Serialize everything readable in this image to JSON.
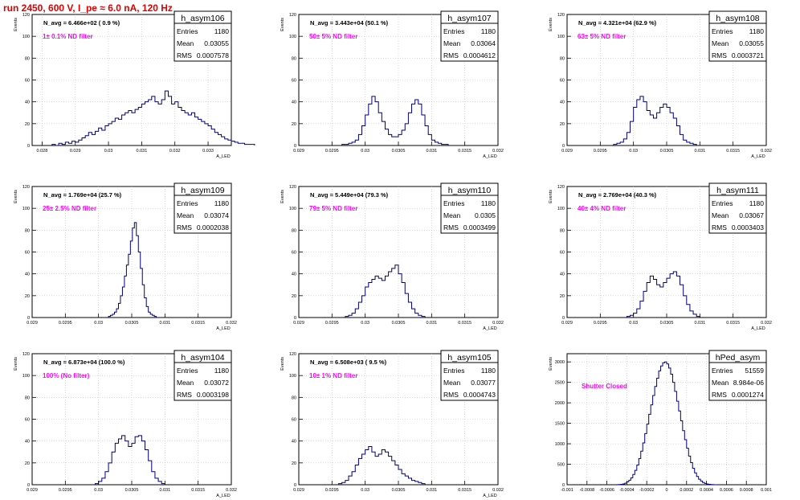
{
  "run_title": "run 2450,   600 V, I_pe ≈ 6.0 nA, 120 Hz",
  "colors": {
    "title": "#e00000",
    "hist_line": "#000080",
    "annotation": "#ff00ff",
    "axis": "#000000",
    "grid": "#c0c0c0"
  },
  "stat_labels": {
    "entries": "Entries",
    "mean": "Mean",
    "rms": "RMS"
  },
  "chart_data": [
    {
      "type": "histogram",
      "name": "h_asym106",
      "navg_text": "N_avg = 6.466e+02 ( 0.9 %)",
      "filter_text": "1± 0.1% ND filter",
      "entries": "1180",
      "mean": "0.03055",
      "rms": "0.0007578",
      "ylabel": "Events",
      "xlabel": "A_LED",
      "xlim": [
        0.0277,
        0.0337
      ],
      "ylim": [
        0,
        120
      ],
      "xticks": [
        0.028,
        0.029,
        0.03,
        0.031,
        0.032,
        0.033
      ],
      "xtick_labels": [
        "0.028",
        "0.029",
        "0.03",
        "0.031",
        "0.032",
        "0.033"
      ],
      "yticks": [
        0,
        20,
        40,
        60,
        80,
        100,
        120
      ],
      "grid": true,
      "legend_position": "top-right",
      "bins": {
        "start": 0.0283,
        "width": 0.0001,
        "counts": [
          1,
          0,
          2,
          1,
          3,
          2,
          4,
          3,
          5,
          7,
          9,
          12,
          10,
          13,
          16,
          14,
          18,
          20,
          22,
          25,
          24,
          28,
          30,
          32,
          30,
          33,
          35,
          38,
          40,
          42,
          45,
          40,
          38,
          42,
          50,
          45,
          38,
          40,
          35,
          32,
          30,
          28,
          30,
          26,
          24,
          22,
          20,
          18,
          15,
          12,
          10,
          8,
          6,
          5,
          4,
          3,
          2,
          2,
          1,
          1,
          1
        ]
      }
    },
    {
      "type": "histogram",
      "name": "h_asym107",
      "navg_text": "N_avg = 3.443e+04 (50.1 %)",
      "filter_text": "50± 5% ND filter",
      "entries": "1180",
      "mean": "0.03064",
      "rms": "0.0004612",
      "ylabel": "Events",
      "xlabel": "A_LED",
      "xlim": [
        0.029,
        0.032
      ],
      "ylim": [
        0,
        120
      ],
      "xticks": [
        0.029,
        0.0295,
        0.03,
        0.0305,
        0.031,
        0.0315,
        0.032
      ],
      "xtick_labels": [
        "0.029",
        "0.0295",
        "0.03",
        "0.0305",
        "0.031",
        "0.0315",
        "0.032"
      ],
      "yticks": [
        0,
        20,
        40,
        60,
        80,
        100,
        120
      ],
      "grid": true,
      "legend_position": "top-right",
      "bins": {
        "start": 0.02965,
        "width": 5e-05,
        "counts": [
          1,
          1,
          2,
          3,
          5,
          10,
          18,
          28,
          38,
          45,
          40,
          30,
          22,
          15,
          10,
          8,
          8,
          10,
          14,
          20,
          30,
          38,
          42,
          38,
          28,
          18,
          10,
          5,
          3,
          2,
          1,
          1
        ]
      }
    },
    {
      "type": "histogram",
      "name": "h_asym108",
      "navg_text": "N_avg = 4.321e+04 (62.9 %)",
      "filter_text": "63± 5% ND filter",
      "entries": "1180",
      "mean": "0.03055",
      "rms": "0.0003721",
      "ylabel": "Events",
      "xlabel": "A_LED",
      "xlim": [
        0.029,
        0.032
      ],
      "ylim": [
        0,
        120
      ],
      "xticks": [
        0.029,
        0.0295,
        0.03,
        0.0305,
        0.031,
        0.0315,
        0.032
      ],
      "xtick_labels": [
        "0.029",
        "0.0295",
        "0.03",
        "0.0305",
        "0.031",
        "0.0315",
        "0.032"
      ],
      "yticks": [
        0,
        20,
        40,
        60,
        80,
        100,
        120
      ],
      "grid": true,
      "legend_position": "top-right",
      "bins": {
        "start": 0.0297,
        "width": 5e-05,
        "counts": [
          1,
          2,
          3,
          6,
          12,
          22,
          35,
          42,
          45,
          40,
          32,
          28,
          25,
          30,
          35,
          38,
          35,
          30,
          25,
          18,
          10,
          5,
          3,
          2,
          1
        ]
      }
    },
    {
      "type": "histogram",
      "name": "h_asym109",
      "navg_text": "N_avg = 1.769e+04 (25.7 %)",
      "filter_text": "25± 2.5% ND filter",
      "entries": "1180",
      "mean": "0.03074",
      "rms": "0.0002038",
      "ylabel": "Events",
      "xlabel": "A_LED",
      "xlim": [
        0.029,
        0.032
      ],
      "ylim": [
        0,
        120
      ],
      "xticks": [
        0.029,
        0.0295,
        0.03,
        0.0305,
        0.031,
        0.0315,
        0.032
      ],
      "xtick_labels": [
        "0.029",
        "0.0295",
        "0.03",
        "0.0305",
        "0.031",
        "0.0315",
        "0.032"
      ],
      "yticks": [
        0,
        20,
        40,
        60,
        80,
        100,
        120
      ],
      "grid": true,
      "legend_position": "top-right",
      "bins": {
        "start": 0.03015,
        "width": 3e-05,
        "counts": [
          1,
          2,
          3,
          5,
          8,
          13,
          20,
          28,
          38,
          48,
          58,
          70,
          82,
          87,
          75,
          60,
          45,
          30,
          18,
          10,
          5,
          3,
          2,
          1
        ]
      }
    },
    {
      "type": "histogram",
      "name": "h_asym110",
      "navg_text": "N_avg = 5.449e+04 (79.3 %)",
      "filter_text": "79± 5% ND filter",
      "entries": "1180",
      "mean": "0.0305",
      "rms": "0.0003499",
      "ylabel": "Events",
      "xlabel": "A_LED",
      "xlim": [
        0.029,
        0.032
      ],
      "ylim": [
        0,
        120
      ],
      "xticks": [
        0.029,
        0.0295,
        0.03,
        0.0305,
        0.031,
        0.0315,
        0.032
      ],
      "xtick_labels": [
        "0.029",
        "0.0295",
        "0.03",
        "0.0305",
        "0.031",
        "0.0315",
        "0.032"
      ],
      "yticks": [
        0,
        20,
        40,
        60,
        80,
        100,
        120
      ],
      "grid": true,
      "legend_position": "top-right",
      "bins": {
        "start": 0.0297,
        "width": 5e-05,
        "counts": [
          1,
          2,
          4,
          8,
          14,
          20,
          28,
          32,
          35,
          38,
          36,
          34,
          38,
          42,
          45,
          48,
          40,
          32,
          22,
          14,
          8,
          4,
          2,
          1
        ]
      }
    },
    {
      "type": "histogram",
      "name": "h_asym111",
      "navg_text": "N_avg = 2.769e+04 (40.3 %)",
      "filter_text": "40± 4% ND filter",
      "entries": "1180",
      "mean": "0.03067",
      "rms": "0.0003403",
      "ylabel": "Events",
      "xlabel": "A_LED",
      "xlim": [
        0.029,
        0.032
      ],
      "ylim": [
        0,
        120
      ],
      "xticks": [
        0.029,
        0.0295,
        0.03,
        0.0305,
        0.031,
        0.0315,
        0.032
      ],
      "xtick_labels": [
        "0.029",
        "0.0295",
        "0.03",
        "0.0305",
        "0.031",
        "0.0315",
        "0.032"
      ],
      "yticks": [
        0,
        20,
        40,
        60,
        80,
        100,
        120
      ],
      "grid": true,
      "legend_position": "top-right",
      "bins": {
        "start": 0.0299,
        "width": 5e-05,
        "counts": [
          1,
          2,
          4,
          8,
          15,
          24,
          32,
          38,
          35,
          30,
          28,
          32,
          36,
          40,
          42,
          38,
          30,
          20,
          12,
          6,
          3,
          1
        ]
      }
    },
    {
      "type": "histogram",
      "name": "h_asym104",
      "navg_text": "N_avg = 6.873e+04 (100.0 %)",
      "filter_text": "100% (No filter)",
      "entries": "1180",
      "mean": "0.03072",
      "rms": "0.0003198",
      "ylabel": "Events",
      "xlabel": "A_LED",
      "xlim": [
        0.029,
        0.032
      ],
      "ylim": [
        0,
        120
      ],
      "xticks": [
        0.029,
        0.0295,
        0.03,
        0.0305,
        0.031,
        0.0315,
        0.032
      ],
      "xtick_labels": [
        "0.029",
        "0.0295",
        "0.03",
        "0.0305",
        "0.031",
        "0.0315",
        "0.032"
      ],
      "yticks": [
        0,
        20,
        40,
        60,
        80,
        100,
        120
      ],
      "grid": true,
      "legend_position": "top-right",
      "bins": {
        "start": 0.02995,
        "width": 5e-05,
        "counts": [
          1,
          3,
          6,
          12,
          20,
          30,
          38,
          42,
          45,
          40,
          35,
          38,
          44,
          45,
          40,
          32,
          22,
          12,
          6,
          3,
          1
        ]
      }
    },
    {
      "type": "histogram",
      "name": "h_asym105",
      "navg_text": "N_avg = 6.508e+03 ( 9.5 %)",
      "filter_text": "10± 1% ND filter",
      "entries": "1180",
      "mean": "0.03077",
      "rms": "0.0004743",
      "ylabel": "Events",
      "xlabel": "A_LED",
      "xlim": [
        0.029,
        0.032
      ],
      "ylim": [
        0,
        120
      ],
      "xticks": [
        0.029,
        0.0295,
        0.03,
        0.0305,
        0.031,
        0.0315,
        0.032
      ],
      "xtick_labels": [
        "0.029",
        "0.0295",
        "0.03",
        "0.0305",
        "0.031",
        "0.0315",
        "0.032"
      ],
      "yticks": [
        0,
        20,
        40,
        60,
        80,
        100,
        120
      ],
      "grid": true,
      "legend_position": "top-right",
      "bins": {
        "start": 0.0296,
        "width": 5e-05,
        "counts": [
          1,
          2,
          4,
          8,
          12,
          18,
          24,
          28,
          32,
          35,
          30,
          26,
          28,
          32,
          30,
          26,
          22,
          18,
          14,
          10,
          8,
          6,
          4,
          3,
          2,
          1
        ]
      }
    },
    {
      "type": "histogram",
      "name": "hPed_asym",
      "navg_text": "",
      "filter_text": "Shutter Closed",
      "entries": "51559",
      "mean": "8.984e-06",
      "rms": "0.0001274",
      "ylabel": "Events",
      "xlabel": "",
      "xlim": [
        -0.001,
        0.001
      ],
      "ylim": [
        0,
        3200
      ],
      "xticks": [
        -0.001,
        -0.0008,
        -0.0006,
        -0.0004,
        -0.0002,
        0,
        0.0002,
        0.0004,
        0.0006,
        0.0008,
        0.001
      ],
      "xtick_labels": [
        "-0.001",
        "-0.0008",
        "-0.0006",
        "-0.0004",
        "-0.0002",
        "0",
        "0.0002",
        "0.0004",
        "0.0006",
        "0.0008",
        "0.001"
      ],
      "yticks": [
        0,
        500,
        1000,
        1500,
        2000,
        2500,
        3000
      ],
      "grid": true,
      "legend_position": "top-right",
      "bins": {
        "start": -0.0005,
        "width": 2e-05,
        "counts": [
          2,
          5,
          10,
          20,
          40,
          70,
          110,
          170,
          250,
          350,
          480,
          640,
          820,
          1020,
          1250,
          1480,
          1720,
          1950,
          2180,
          2400,
          2600,
          2780,
          2900,
          2980,
          3000,
          2950,
          2850,
          2700,
          2500,
          2280,
          2040,
          1800,
          1560,
          1320,
          1100,
          890,
          700,
          540,
          400,
          290,
          200,
          135,
          90,
          55,
          32,
          18,
          10,
          5,
          3,
          1
        ]
      }
    }
  ]
}
